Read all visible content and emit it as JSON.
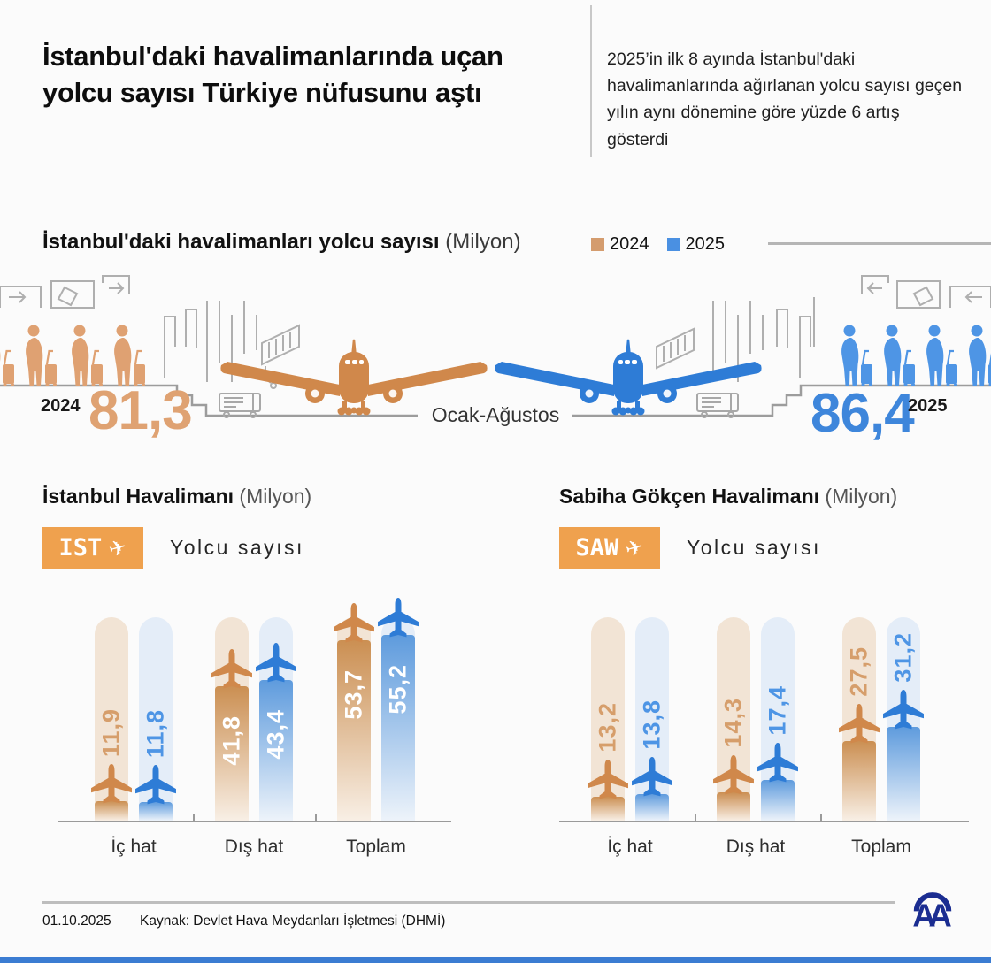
{
  "colors": {
    "orange": "#D49C6E",
    "orange_strong": "#D0884B",
    "orange_big_number": "#DFA272",
    "orange_track": "#F2E4D5",
    "orange_grad_top": "#CB8F52",
    "orange_fade": "#F8EFE5",
    "orange_label": "#D69E6B",
    "blue": "#4A90E2",
    "blue_strong": "#2E7CD6",
    "blue_big_number": "#3E86DB",
    "blue_track": "#E4EDF8",
    "blue_grad_top": "#5E9BDD",
    "blue_fade": "#EDF3FA",
    "blue_label": "#4E95E5",
    "badge_bg": "#EFA14E",
    "art_gray": "#A8A8A8",
    "aa_navy": "#1B2D91",
    "bottom_bar": "#3B7CD2"
  },
  "header": {
    "title": "İstanbul'daki havalimanlarında uçan yolcu sayısı Türkiye nüfusunu aştı",
    "summary": "2025’in ilk 8 ayında İstanbul'daki havalimanlarında ağırlanan yolcu sayısı geçen yılın aynı dönemine göre yüzde 6 artış gösterdi"
  },
  "overview": {
    "title_bold": "İstanbul'daki havalimanları yolcu sayısı",
    "title_unit": "(Milyon)",
    "legend": [
      {
        "label": "2024",
        "color": "#D49C6E"
      },
      {
        "label": "2025",
        "color": "#4A90E2"
      }
    ],
    "period_label": "Ocak-Ağustos",
    "left": {
      "year": "2024",
      "value": "81,3"
    },
    "right": {
      "year": "2025",
      "value": "86,4"
    }
  },
  "airports": [
    {
      "title_bold": "İstanbul Havalimanı",
      "title_unit": "(Milyon)",
      "badge_code": "IST",
      "badge_icon": "✈",
      "subtitle": "Yolcu sayısı"
    },
    {
      "title_bold": "Sabiha Gökçen Havalimanı",
      "title_unit": "(Milyon)",
      "badge_code": "SAW",
      "badge_icon": "✈",
      "subtitle": "Yolcu sayısı"
    }
  ],
  "chart_data": [
    {
      "type": "pictorial-summary",
      "title": "İstanbul'daki havalimanları yolcu sayısı (Milyon)",
      "period": "Ocak-Ağustos",
      "series": [
        {
          "name": "2024",
          "value": 81.3,
          "label": "81,3"
        },
        {
          "name": "2025",
          "value": 86.4,
          "label": "86,4"
        }
      ]
    },
    {
      "type": "bar",
      "title": "İstanbul Havalimanı (Milyon)",
      "ylabel": "Yolcu sayısı",
      "legend_position": "top",
      "categories": [
        "İç hat",
        "Dış hat",
        "Toplam"
      ],
      "series": [
        {
          "name": "2024",
          "values": [
            11.9,
            41.8,
            53.7
          ],
          "labels": [
            "11,9",
            "41,8",
            "53,7"
          ]
        },
        {
          "name": "2025",
          "values": [
            11.8,
            43.4,
            55.2
          ],
          "labels": [
            "11,8",
            "43,4",
            "55,2"
          ]
        }
      ]
    },
    {
      "type": "bar",
      "title": "Sabiha Gökçen Havalimanı (Milyon)",
      "ylabel": "Yolcu sayısı",
      "legend_position": "top",
      "categories": [
        "İç hat",
        "Dış hat",
        "Toplam"
      ],
      "series": [
        {
          "name": "2024",
          "values": [
            13.2,
            14.3,
            27.5
          ],
          "labels": [
            "13,2",
            "14,3",
            "27,5"
          ]
        },
        {
          "name": "2025",
          "values": [
            13.8,
            17.4,
            31.2
          ],
          "labels": [
            "13,8",
            "17,4",
            "31,2"
          ]
        }
      ]
    }
  ],
  "footer": {
    "date": "01.10.2025",
    "source": "Kaynak: Devlet Hava Meydanları İşletmesi (DHMİ)",
    "logo": "AA"
  }
}
